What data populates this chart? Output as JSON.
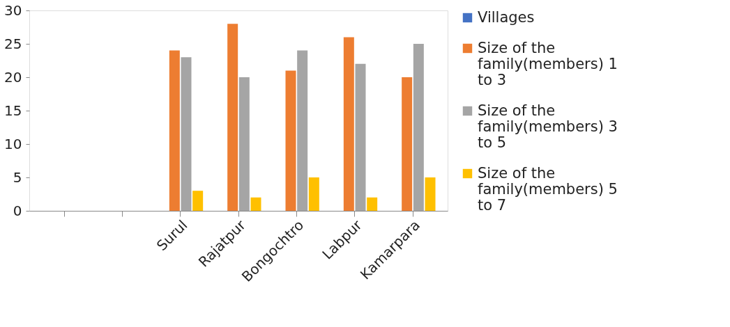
{
  "chart_data": {
    "type": "bar",
    "categories": [
      null,
      null,
      "Surul",
      "Rajatpur",
      "Bongochtro",
      "Labpur",
      "Kamarpara"
    ],
    "series": [
      {
        "name": "Villages",
        "color": "#4472c4",
        "values": [
          null,
          null,
          null,
          null,
          null,
          null,
          null
        ]
      },
      {
        "name": "Size of the family(members) 1 to 3",
        "color": "#ed7d31",
        "values": [
          null,
          null,
          24,
          28,
          21,
          26,
          20
        ]
      },
      {
        "name": "Size of the family(members) 3 to 5",
        "color": "#a5a5a5",
        "values": [
          null,
          null,
          23,
          20,
          24,
          22,
          25
        ]
      },
      {
        "name": "Size of the family(members) 5 to 7",
        "color": "#ffc000",
        "values": [
          null,
          null,
          3,
          2,
          5,
          2,
          5
        ]
      }
    ],
    "ylim": [
      0,
      30
    ],
    "yticks": [
      0,
      5,
      10,
      15,
      20,
      25,
      30
    ],
    "grid": false,
    "legend": "right"
  }
}
